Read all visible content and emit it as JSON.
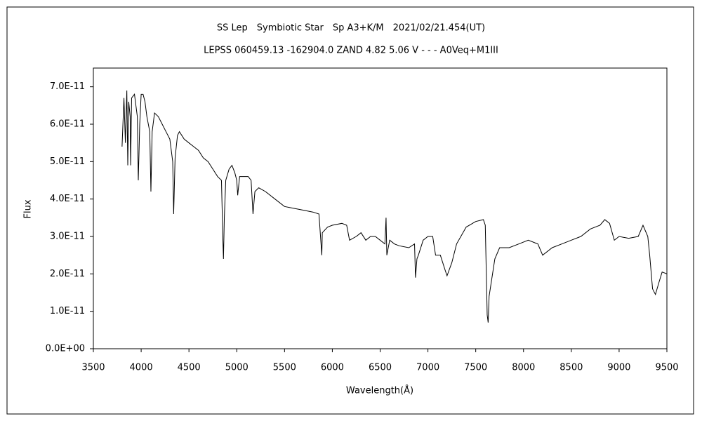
{
  "chart_data": {
    "type": "line",
    "title": "SS Lep　Symbiotic Star　Sp A3+K/M　2021/02/21.454(UT)",
    "subtitle": "LEPSS 060459.13 -162904.0 ZAND 4.82 5.06 V - - - A0Veq+M1III",
    "xlabel": "Wavelength(Å)",
    "ylabel": "Flux",
    "color": "#000000",
    "xlim": [
      3500,
      9500
    ],
    "xticks": [
      3500,
      4000,
      4500,
      5000,
      5500,
      6000,
      6500,
      7000,
      7500,
      8000,
      8500,
      9000,
      9500
    ],
    "ylim": [
      0,
      7.5e-11
    ],
    "yticks": [
      {
        "value": 0,
        "label": "0.0E+00"
      },
      {
        "value": 1e-11,
        "label": "1.0E-11"
      },
      {
        "value": 2e-11,
        "label": "2.0E-11"
      },
      {
        "value": 3e-11,
        "label": "3.0E-11"
      },
      {
        "value": 4e-11,
        "label": "4.0E-11"
      },
      {
        "value": 5e-11,
        "label": "5.0E-11"
      },
      {
        "value": 6e-11,
        "label": "6.0E-11"
      },
      {
        "value": 7e-11,
        "label": "7.0E-11"
      }
    ],
    "x": [
      3800,
      3820,
      3835,
      3850,
      3860,
      3870,
      3885,
      3890,
      3900,
      3930,
      3960,
      3970,
      3985,
      4000,
      4020,
      4040,
      4060,
      4090,
      4102,
      4115,
      4140,
      4180,
      4220,
      4260,
      4300,
      4330,
      4340,
      4355,
      4380,
      4400,
      4450,
      4500,
      4550,
      4600,
      4650,
      4700,
      4750,
      4800,
      4840,
      4855,
      4861,
      4870,
      4885,
      4920,
      4950,
      4980,
      5000,
      5010,
      5030,
      5080,
      5120,
      5150,
      5170,
      5190,
      5230,
      5300,
      5400,
      5500,
      5600,
      5700,
      5800,
      5860,
      5890,
      5895,
      5950,
      6000,
      6100,
      6150,
      6180,
      6250,
      6300,
      6350,
      6400,
      6450,
      6500,
      6550,
      6562,
      6570,
      6600,
      6650,
      6700,
      6800,
      6860,
      6870,
      6885,
      6900,
      6950,
      7000,
      7050,
      7080,
      7130,
      7180,
      7200,
      7250,
      7300,
      7400,
      7500,
      7580,
      7600,
      7620,
      7630,
      7640,
      7700,
      7750,
      7850,
      7950,
      8050,
      8150,
      8200,
      8300,
      8400,
      8500,
      8600,
      8700,
      8800,
      8850,
      8900,
      8950,
      9000,
      9100,
      9200,
      9250,
      9300,
      9320,
      9350,
      9380,
      9420,
      9450,
      9500
    ],
    "values": [
      5.4e-11,
      6.7e-11,
      5.5e-11,
      6.9e-11,
      4.9e-11,
      6.6e-11,
      6.2e-11,
      4.9e-11,
      6.7e-11,
      6.8e-11,
      6.2e-11,
      4.5e-11,
      6e-11,
      6.8e-11,
      6.8e-11,
      6.6e-11,
      6.2e-11,
      5.8e-11,
      4.2e-11,
      5.8e-11,
      6.3e-11,
      6.2e-11,
      6e-11,
      5.8e-11,
      5.6e-11,
      5e-11,
      3.6e-11,
      5.1e-11,
      5.7e-11,
      5.8e-11,
      5.6e-11,
      5.5e-11,
      5.4e-11,
      5.3e-11,
      5.1e-11,
      5e-11,
      4.8e-11,
      4.6e-11,
      4.5e-11,
      2.9e-11,
      2.4e-11,
      3.5e-11,
      4.5e-11,
      4.8e-11,
      4.9e-11,
      4.7e-11,
      4.5e-11,
      4.1e-11,
      4.6e-11,
      4.6e-11,
      4.6e-11,
      4.5e-11,
      3.6e-11,
      4.2e-11,
      4.3e-11,
      4.2e-11,
      4e-11,
      3.8e-11,
      3.75e-11,
      3.7e-11,
      3.65e-11,
      3.6e-11,
      2.5e-11,
      3.1e-11,
      3.25e-11,
      3.3e-11,
      3.35e-11,
      3.3e-11,
      2.9e-11,
      3e-11,
      3.1e-11,
      2.9e-11,
      3e-11,
      3e-11,
      2.9e-11,
      2.8e-11,
      3.5e-11,
      2.5e-11,
      2.9e-11,
      2.8e-11,
      2.75e-11,
      2.7e-11,
      2.8e-11,
      1.9e-11,
      2.4e-11,
      2.5e-11,
      2.9e-11,
      3e-11,
      3e-11,
      2.5e-11,
      2.5e-11,
      2.1e-11,
      1.95e-11,
      2.3e-11,
      2.8e-11,
      3.25e-11,
      3.4e-11,
      3.45e-11,
      3.3e-11,
      9e-12,
      7e-12,
      1.4e-11,
      2.4e-11,
      2.7e-11,
      2.7e-11,
      2.8e-11,
      2.9e-11,
      2.8e-11,
      2.5e-11,
      2.7e-11,
      2.8e-11,
      2.9e-11,
      3e-11,
      3.2e-11,
      3.3e-11,
      3.45e-11,
      3.35e-11,
      2.9e-11,
      3e-11,
      2.95e-11,
      3e-11,
      3.3e-11,
      3e-11,
      2.5e-11,
      1.6e-11,
      1.45e-11,
      1.8e-11,
      2.05e-11,
      2e-11
    ]
  }
}
